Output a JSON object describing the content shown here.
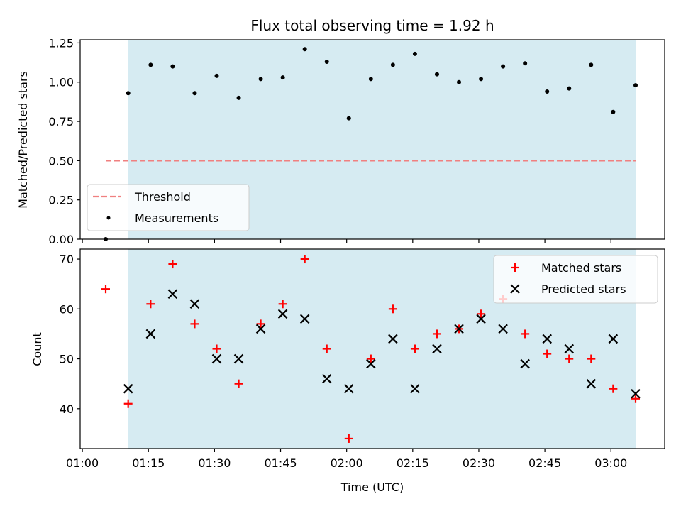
{
  "chart_data": {
    "type": "scatter",
    "title": "Flux total observing time = 1.92 h",
    "xlabel": "Time (UTC)",
    "x_tick_labels": [
      "01:00",
      "01:15",
      "01:30",
      "01:45",
      "02:00",
      "02:15",
      "02:30",
      "02:45",
      "03:00"
    ],
    "x_tick_minutes": [
      60,
      75,
      90,
      105,
      120,
      135,
      150,
      165,
      180
    ],
    "xlim_minutes": [
      59.5,
      192.2
    ],
    "shaded_interval_minutes": [
      70.4,
      185.6
    ],
    "shaded_color": "#add8e6",
    "panels": [
      {
        "name": "ratio",
        "ylabel": "Matched/Predicted stars",
        "ylim": [
          0,
          1.27
        ],
        "y_ticks": [
          0,
          0.25,
          0.5,
          0.75,
          1.0,
          1.25
        ],
        "y_tick_labels": [
          "0.00",
          "0.25",
          "0.50",
          "0.75",
          "1.00",
          "1.25"
        ],
        "threshold": {
          "name": "Threshold",
          "value": 0.5,
          "x_range_minutes": [
            65.3,
            185.6
          ],
          "color": "#f08080"
        },
        "series": [
          {
            "name": "Measurements",
            "color": "#000000",
            "marker": "dot",
            "x_minutes": [
              65.3,
              70.4,
              75.5,
              80.5,
              85.5,
              90.5,
              95.5,
              100.5,
              105.5,
              110.5,
              115.5,
              120.5,
              125.5,
              130.5,
              135.5,
              140.5,
              145.5,
              150.5,
              155.5,
              160.5,
              165.5,
              170.5,
              175.5,
              180.5,
              185.6
            ],
            "values": [
              0.0,
              0.93,
              1.11,
              1.1,
              0.93,
              1.04,
              0.9,
              1.02,
              1.03,
              1.21,
              1.13,
              0.77,
              1.02,
              1.11,
              1.18,
              1.05,
              1.0,
              1.02,
              1.1,
              1.12,
              0.94,
              0.96,
              1.11,
              0.81,
              0.98
            ]
          }
        ]
      },
      {
        "name": "count",
        "ylabel": "Count",
        "ylim": [
          32,
          72
        ],
        "y_ticks": [
          40,
          50,
          60,
          70
        ],
        "y_tick_labels": [
          "40",
          "50",
          "60",
          "70"
        ],
        "series": [
          {
            "name": "Matched stars",
            "color": "#ff0000",
            "marker": "plus",
            "x_minutes": [
              65.3,
              70.4,
              75.5,
              80.5,
              85.5,
              90.5,
              95.5,
              100.5,
              105.5,
              110.5,
              115.5,
              120.5,
              125.5,
              130.5,
              135.5,
              140.5,
              145.5,
              150.5,
              155.5,
              160.5,
              165.5,
              170.5,
              175.5,
              180.5,
              185.6
            ],
            "values": [
              64,
              41,
              61,
              69,
              57,
              52,
              45,
              57,
              61,
              70,
              52,
              34,
              50,
              60,
              52,
              55,
              56,
              59,
              62,
              55,
              51,
              50,
              50,
              44,
              42
            ]
          },
          {
            "name": "Predicted stars",
            "color": "#000000",
            "marker": "x",
            "x_minutes": [
              70.4,
              75.5,
              80.5,
              85.5,
              90.5,
              95.5,
              100.5,
              105.5,
              110.5,
              115.5,
              120.5,
              125.5,
              130.5,
              135.5,
              140.5,
              145.5,
              150.5,
              155.5,
              160.5,
              165.5,
              170.5,
              175.5,
              180.5,
              185.6
            ],
            "values": [
              44,
              55,
              63,
              61,
              50,
              50,
              56,
              59,
              58,
              46,
              44,
              49,
              54,
              44,
              52,
              56,
              58,
              56,
              49,
              54,
              52,
              45,
              54,
              43
            ]
          }
        ]
      }
    ]
  }
}
